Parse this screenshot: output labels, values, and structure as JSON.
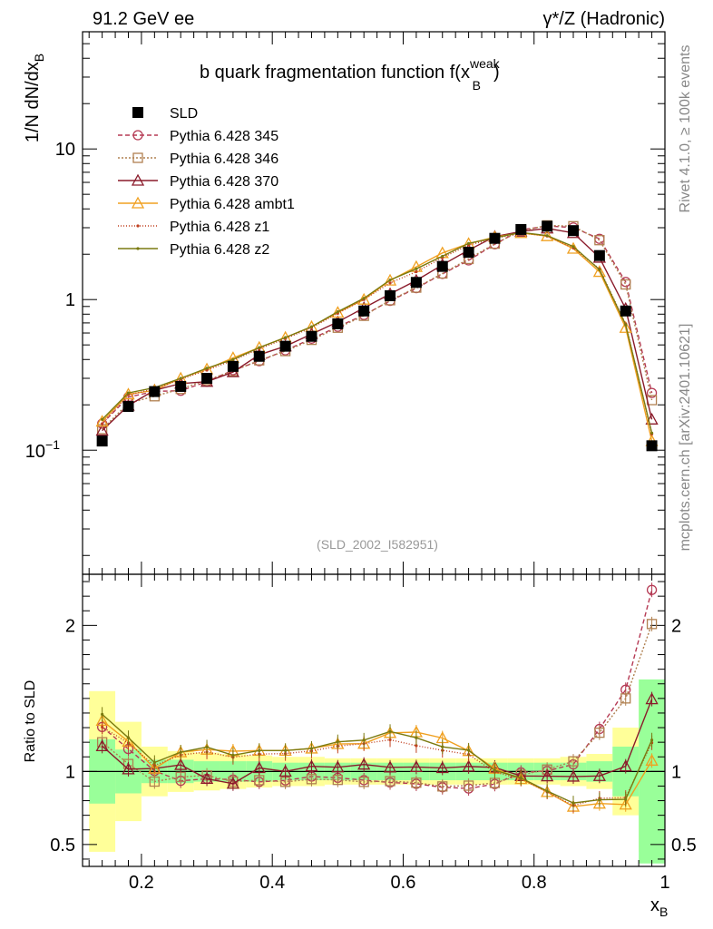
{
  "header": {
    "left": "91.2 GeV ee",
    "right": "γ*/Z (Hadronic)"
  },
  "side_text": {
    "rivet": "Rivet 4.1.0, ≥ 100k events",
    "mcplots": "mcplots.cern.ch [arXiv:2401.10621]"
  },
  "chart_data": {
    "type": "line",
    "title": "b quark fragmentation function f(x_B^weak)",
    "title_parts": {
      "main": "b quark fragmentation function f(x",
      "sup": "weak",
      "sub": "B",
      "close": ")"
    },
    "ylabel": "1/N  dN/dx_B",
    "ylabel_parts": {
      "main": "1/N  dN/dx",
      "sub": "B"
    },
    "xlabel": "x_B",
    "xlabel_parts": {
      "main": "x",
      "sub": "B"
    },
    "watermark": "(SLD_2002_I582951)",
    "xlim": [
      0.11,
      1.0
    ],
    "ylim": [
      0.015,
      60
    ],
    "yscale": "log",
    "main_yticks": [
      {
        "v": 0.1,
        "base": "10",
        "exp": "−1"
      },
      {
        "v": 1,
        "label": "1"
      },
      {
        "v": 10,
        "label": "10"
      }
    ],
    "xticks": [
      {
        "v": 0.2,
        "label": "0.2"
      },
      {
        "v": 0.4,
        "label": "0.4"
      },
      {
        "v": 0.6,
        "label": "0.6"
      },
      {
        "v": 0.8,
        "label": "0.8"
      },
      {
        "v": 1.0,
        "label": "1"
      }
    ],
    "ratio": {
      "ylabel": "Ratio to SLD",
      "ylim": [
        0.35,
        2.35
      ],
      "yticks": [
        {
          "v": 0.5,
          "label": "0.5"
        },
        {
          "v": 1,
          "label": "1"
        },
        {
          "v": 2,
          "label": "2"
        }
      ]
    },
    "x": [
      0.14,
      0.18,
      0.22,
      0.26,
      0.3,
      0.34,
      0.38,
      0.42,
      0.46,
      0.5,
      0.54,
      0.58,
      0.62,
      0.66,
      0.7,
      0.74,
      0.78,
      0.82,
      0.86,
      0.9,
      0.94,
      0.98
    ],
    "band_yellow": [
      0.55,
      0.34,
      0.17,
      0.14,
      0.13,
      0.12,
      0.11,
      0.1,
      0.1,
      0.09,
      0.09,
      0.09,
      0.09,
      0.09,
      0.09,
      0.09,
      0.09,
      0.09,
      0.1,
      0.12,
      0.3,
      0.55
    ],
    "band_green": [
      0.22,
      0.15,
      0.08,
      0.08,
      0.07,
      0.07,
      0.07,
      0.06,
      0.06,
      0.06,
      0.06,
      0.06,
      0.06,
      0.06,
      0.06,
      0.06,
      0.06,
      0.06,
      0.06,
      0.07,
      0.17,
      0.63
    ],
    "data": {
      "name": "SLD",
      "color": "#000000",
      "values": [
        0.115,
        0.195,
        0.245,
        0.265,
        0.3,
        0.36,
        0.42,
        0.49,
        0.57,
        0.69,
        0.84,
        1.06,
        1.3,
        1.66,
        2.06,
        2.55,
        2.92,
        3.07,
        2.87,
        1.96,
        0.84,
        0.107
      ]
    },
    "series": [
      {
        "name": "Pythia 6.428 345",
        "color": "#b53a54",
        "marker": "circle",
        "dash": "5,3",
        "values": [
          0.15,
          0.225,
          0.246,
          0.248,
          0.285,
          0.34,
          0.39,
          0.46,
          0.55,
          0.66,
          0.79,
          0.98,
          1.19,
          1.48,
          1.82,
          2.33,
          2.9,
          3.08,
          3.01,
          2.53,
          1.31,
          0.24
        ]
      },
      {
        "name": "Pythia 6.428 346",
        "color": "#b08050",
        "marker": "square",
        "dash": "2,2",
        "values": [
          0.138,
          0.205,
          0.228,
          0.255,
          0.292,
          0.335,
          0.395,
          0.455,
          0.54,
          0.65,
          0.78,
          0.99,
          1.2,
          1.49,
          1.86,
          2.35,
          2.85,
          3.11,
          3.07,
          2.48,
          1.26,
          0.215
        ]
      },
      {
        "name": "Pythia 6.428 370",
        "color": "#8a1a2a",
        "marker": "triangle",
        "dash": "",
        "values": [
          0.135,
          0.198,
          0.25,
          0.277,
          0.285,
          0.33,
          0.43,
          0.49,
          0.59,
          0.71,
          0.88,
          1.09,
          1.34,
          1.7,
          2.13,
          2.62,
          2.83,
          2.97,
          2.77,
          1.9,
          0.87,
          0.16
        ]
      },
      {
        "name": "Pythia 6.428 ambt1",
        "color": "#f0a020",
        "marker": "triangle",
        "dash": "",
        "values": [
          0.155,
          0.235,
          0.25,
          0.3,
          0.345,
          0.41,
          0.48,
          0.56,
          0.66,
          0.82,
          1.0,
          1.34,
          1.65,
          2.04,
          2.35,
          2.6,
          2.77,
          2.64,
          2.18,
          1.53,
          0.65,
          0.115
        ]
      },
      {
        "name": "Pythia 6.428 z1",
        "color": "#c04020",
        "marker": "dot",
        "dash": "1,2",
        "values": [
          0.15,
          0.233,
          0.255,
          0.295,
          0.34,
          0.395,
          0.47,
          0.55,
          0.65,
          0.81,
          1.0,
          1.29,
          1.53,
          1.9,
          2.3,
          2.54,
          2.77,
          2.64,
          2.2,
          1.6,
          0.69,
          0.128
        ]
      },
      {
        "name": "Pythia 6.428 z2",
        "color": "#7a7a10",
        "marker": "dot",
        "dash": "",
        "values": [
          0.16,
          0.24,
          0.26,
          0.3,
          0.35,
          0.4,
          0.48,
          0.56,
          0.66,
          0.83,
          1.02,
          1.35,
          1.6,
          1.94,
          2.36,
          2.57,
          2.79,
          2.66,
          2.25,
          1.58,
          0.68,
          0.13
        ]
      }
    ]
  }
}
